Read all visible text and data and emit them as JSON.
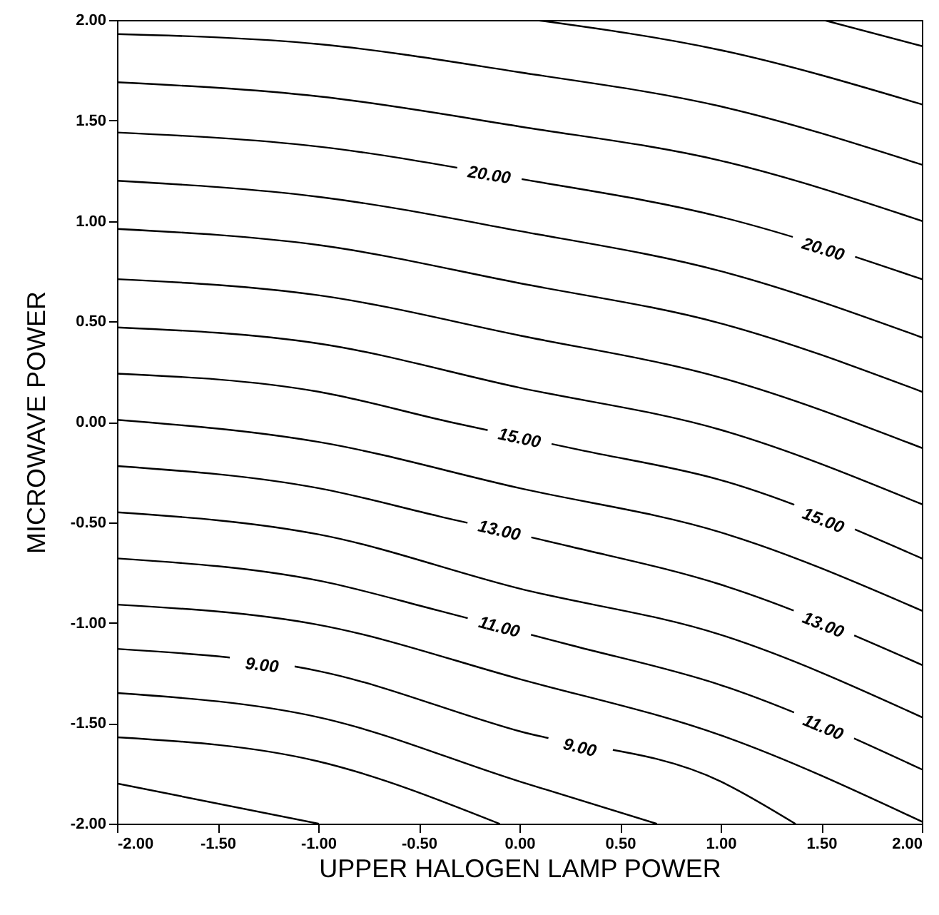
{
  "chart_data": {
    "type": "line",
    "xlabel": "UPPER HALOGEN LAMP POWER",
    "ylabel": "MICROWAVE POWER",
    "xlim": [
      -2,
      2
    ],
    "ylim": [
      -2,
      2
    ],
    "xticks": [
      {
        "value": -2,
        "label": "-2.00"
      },
      {
        "value": -1.5,
        "label": "-1.50"
      },
      {
        "value": -1,
        "label": "-1.00"
      },
      {
        "value": -0.5,
        "label": "-0.50"
      },
      {
        "value": 0,
        "label": "0.00"
      },
      {
        "value": 0.5,
        "label": "0.50"
      },
      {
        "value": 1,
        "label": "1.00"
      },
      {
        "value": 1.5,
        "label": "1.50"
      },
      {
        "value": 2,
        "label": "2.00"
      }
    ],
    "yticks": [
      {
        "value": -2,
        "label": "-2.00"
      },
      {
        "value": -1.5,
        "label": "-1.50"
      },
      {
        "value": -1,
        "label": "-1.00"
      },
      {
        "value": -0.5,
        "label": "-0.50"
      },
      {
        "value": 0,
        "label": "0.00"
      },
      {
        "value": 0.5,
        "label": "0.50"
      },
      {
        "value": 1,
        "label": "1.00"
      },
      {
        "value": 1.5,
        "label": "1.50"
      },
      {
        "value": 2,
        "label": "2.00"
      }
    ],
    "grid": false,
    "marker": "none",
    "line_style": "solid",
    "series": [
      {
        "color": "#000000",
        "x": [
          1.51,
          2
        ],
        "values": [
          2,
          1.87
        ]
      },
      {
        "color": "#000000",
        "x": [
          0.08,
          1,
          2
        ],
        "values": [
          2,
          1.85,
          1.58
        ]
      },
      {
        "color": "#000000",
        "x": [
          -2,
          -1,
          0,
          1,
          2
        ],
        "values": [
          1.93,
          1.88,
          1.74,
          1.57,
          1.28
        ]
      },
      {
        "color": "#000000",
        "x": [
          -2,
          -1,
          0,
          1,
          2
        ],
        "values": [
          1.69,
          1.62,
          1.47,
          1.3,
          1.0
        ]
      },
      {
        "color": "#000000",
        "x": [
          -2,
          -1,
          0,
          1,
          2
        ],
        "values": [
          1.44,
          1.37,
          1.21,
          1.02,
          0.71
        ]
      },
      {
        "color": "#000000",
        "x": [
          -2,
          -1,
          0,
          1,
          2
        ],
        "values": [
          1.2,
          1.12,
          0.95,
          0.75,
          0.42
        ]
      },
      {
        "color": "#000000",
        "x": [
          -2,
          -1,
          0,
          1,
          2
        ],
        "values": [
          0.96,
          0.88,
          0.69,
          0.49,
          0.15
        ]
      },
      {
        "color": "#000000",
        "x": [
          -2,
          -1,
          0,
          1,
          2
        ],
        "values": [
          0.71,
          0.63,
          0.43,
          0.22,
          -0.13
        ]
      },
      {
        "color": "#000000",
        "x": [
          -2,
          -1,
          0,
          1,
          2
        ],
        "values": [
          0.47,
          0.39,
          0.17,
          -0.04,
          -0.41
        ]
      },
      {
        "color": "#000000",
        "x": [
          -2,
          -1,
          -0.35,
          0.3,
          1,
          2
        ],
        "values": [
          0.24,
          0.15,
          0.0,
          -0.14,
          -0.29,
          -0.68
        ]
      },
      {
        "color": "#000000",
        "x": [
          -2,
          -1,
          0,
          1,
          2
        ],
        "values": [
          0.01,
          -0.1,
          -0.33,
          -0.55,
          -0.94
        ]
      },
      {
        "color": "#000000",
        "x": [
          -2,
          -1,
          -0.4,
          0.25,
          1,
          2
        ],
        "values": [
          -0.22,
          -0.33,
          -0.47,
          -0.62,
          -0.81,
          -1.21
        ]
      },
      {
        "color": "#000000",
        "x": [
          -2,
          -1,
          0,
          1,
          2
        ],
        "values": [
          -0.45,
          -0.56,
          -0.83,
          -1.06,
          -1.47
        ]
      },
      {
        "color": "#000000",
        "x": [
          -2,
          -1,
          -0.4,
          0.25,
          1,
          2
        ],
        "values": [
          -0.68,
          -0.79,
          -0.94,
          -1.11,
          -1.31,
          -1.73
        ]
      },
      {
        "color": "#000000",
        "x": [
          -2,
          -1,
          0,
          1,
          2
        ],
        "values": [
          -0.91,
          -1.01,
          -1.28,
          -1.56,
          -1.99
        ]
      },
      {
        "color": "#000000",
        "x": [
          -2,
          -1,
          0,
          1,
          1.37
        ],
        "values": [
          -1.13,
          -1.24,
          -1.54,
          -1.79,
          -2
        ]
      },
      {
        "color": "#000000",
        "x": [
          -2,
          -1,
          0,
          0.68
        ],
        "values": [
          -1.35,
          -1.47,
          -1.79,
          -2
        ]
      },
      {
        "color": "#000000",
        "x": [
          -2,
          -1,
          -0.1
        ],
        "values": [
          -1.57,
          -1.69,
          -2
        ]
      },
      {
        "color": "#000000",
        "x": [
          -2,
          -1
        ],
        "values": [
          -1.8,
          -2
        ]
      }
    ],
    "annotations": [
      {
        "text": "20.00",
        "x": -0.15,
        "y": 1.23
      },
      {
        "text": "20.00",
        "x": 1.51,
        "y": 0.86
      },
      {
        "text": "15.00",
        "x": 0.0,
        "y": -0.08
      },
      {
        "text": "15.00",
        "x": 1.51,
        "y": -0.49
      },
      {
        "text": "13.00",
        "x": -0.1,
        "y": -0.54
      },
      {
        "text": "13.00",
        "x": 1.51,
        "y": -1.01
      },
      {
        "text": "11.00",
        "x": -0.1,
        "y": -1.02
      },
      {
        "text": "11.00",
        "x": 1.51,
        "y": -1.52
      },
      {
        "text": "9.00",
        "x": -1.28,
        "y": -1.21
      },
      {
        "text": "9.00",
        "x": 0.3,
        "y": -1.62
      }
    ]
  }
}
